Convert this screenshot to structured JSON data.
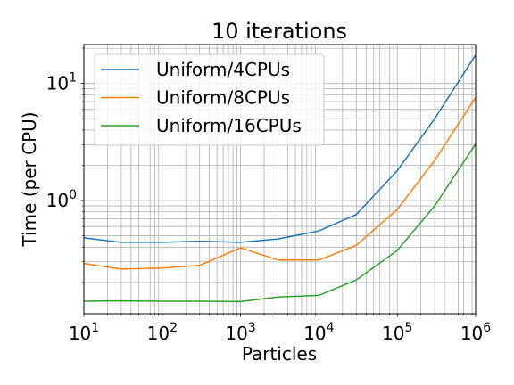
{
  "chart_data": {
    "type": "line",
    "title": "10 iterations",
    "xlabel": "Particles",
    "ylabel": "Time (per CPU)",
    "xscale": "log",
    "yscale": "log",
    "xlim": [
      10,
      1000000
    ],
    "ylim": [
      0.108,
      21.5
    ],
    "grid": "major and minor",
    "legend_position": "top-left",
    "x": [
      10,
      30,
      100,
      300,
      1000,
      3000,
      10000,
      30000,
      100000,
      300000,
      1000000
    ],
    "x_tick_exponents": [
      "1",
      "2",
      "3",
      "4",
      "5",
      "6"
    ],
    "y_tick_exponents": [
      "1",
      "0"
    ],
    "tick_base": "10",
    "series": [
      {
        "name": "Uniform/4CPUs",
        "color": "#1f77b4",
        "values": [
          0.48,
          0.44,
          0.44,
          0.45,
          0.44,
          0.47,
          0.55,
          0.76,
          1.8,
          5.0,
          17.5
        ]
      },
      {
        "name": "Uniform/8CPUs",
        "color": "#ff7f0e",
        "values": [
          0.29,
          0.26,
          0.265,
          0.28,
          0.395,
          0.31,
          0.31,
          0.415,
          0.84,
          2.2,
          7.6
        ]
      },
      {
        "name": "Uniform/16CPUs",
        "color": "#2ca02c",
        "values": [
          0.138,
          0.139,
          0.138,
          0.138,
          0.137,
          0.15,
          0.155,
          0.21,
          0.375,
          0.9,
          3.05
        ]
      }
    ]
  }
}
